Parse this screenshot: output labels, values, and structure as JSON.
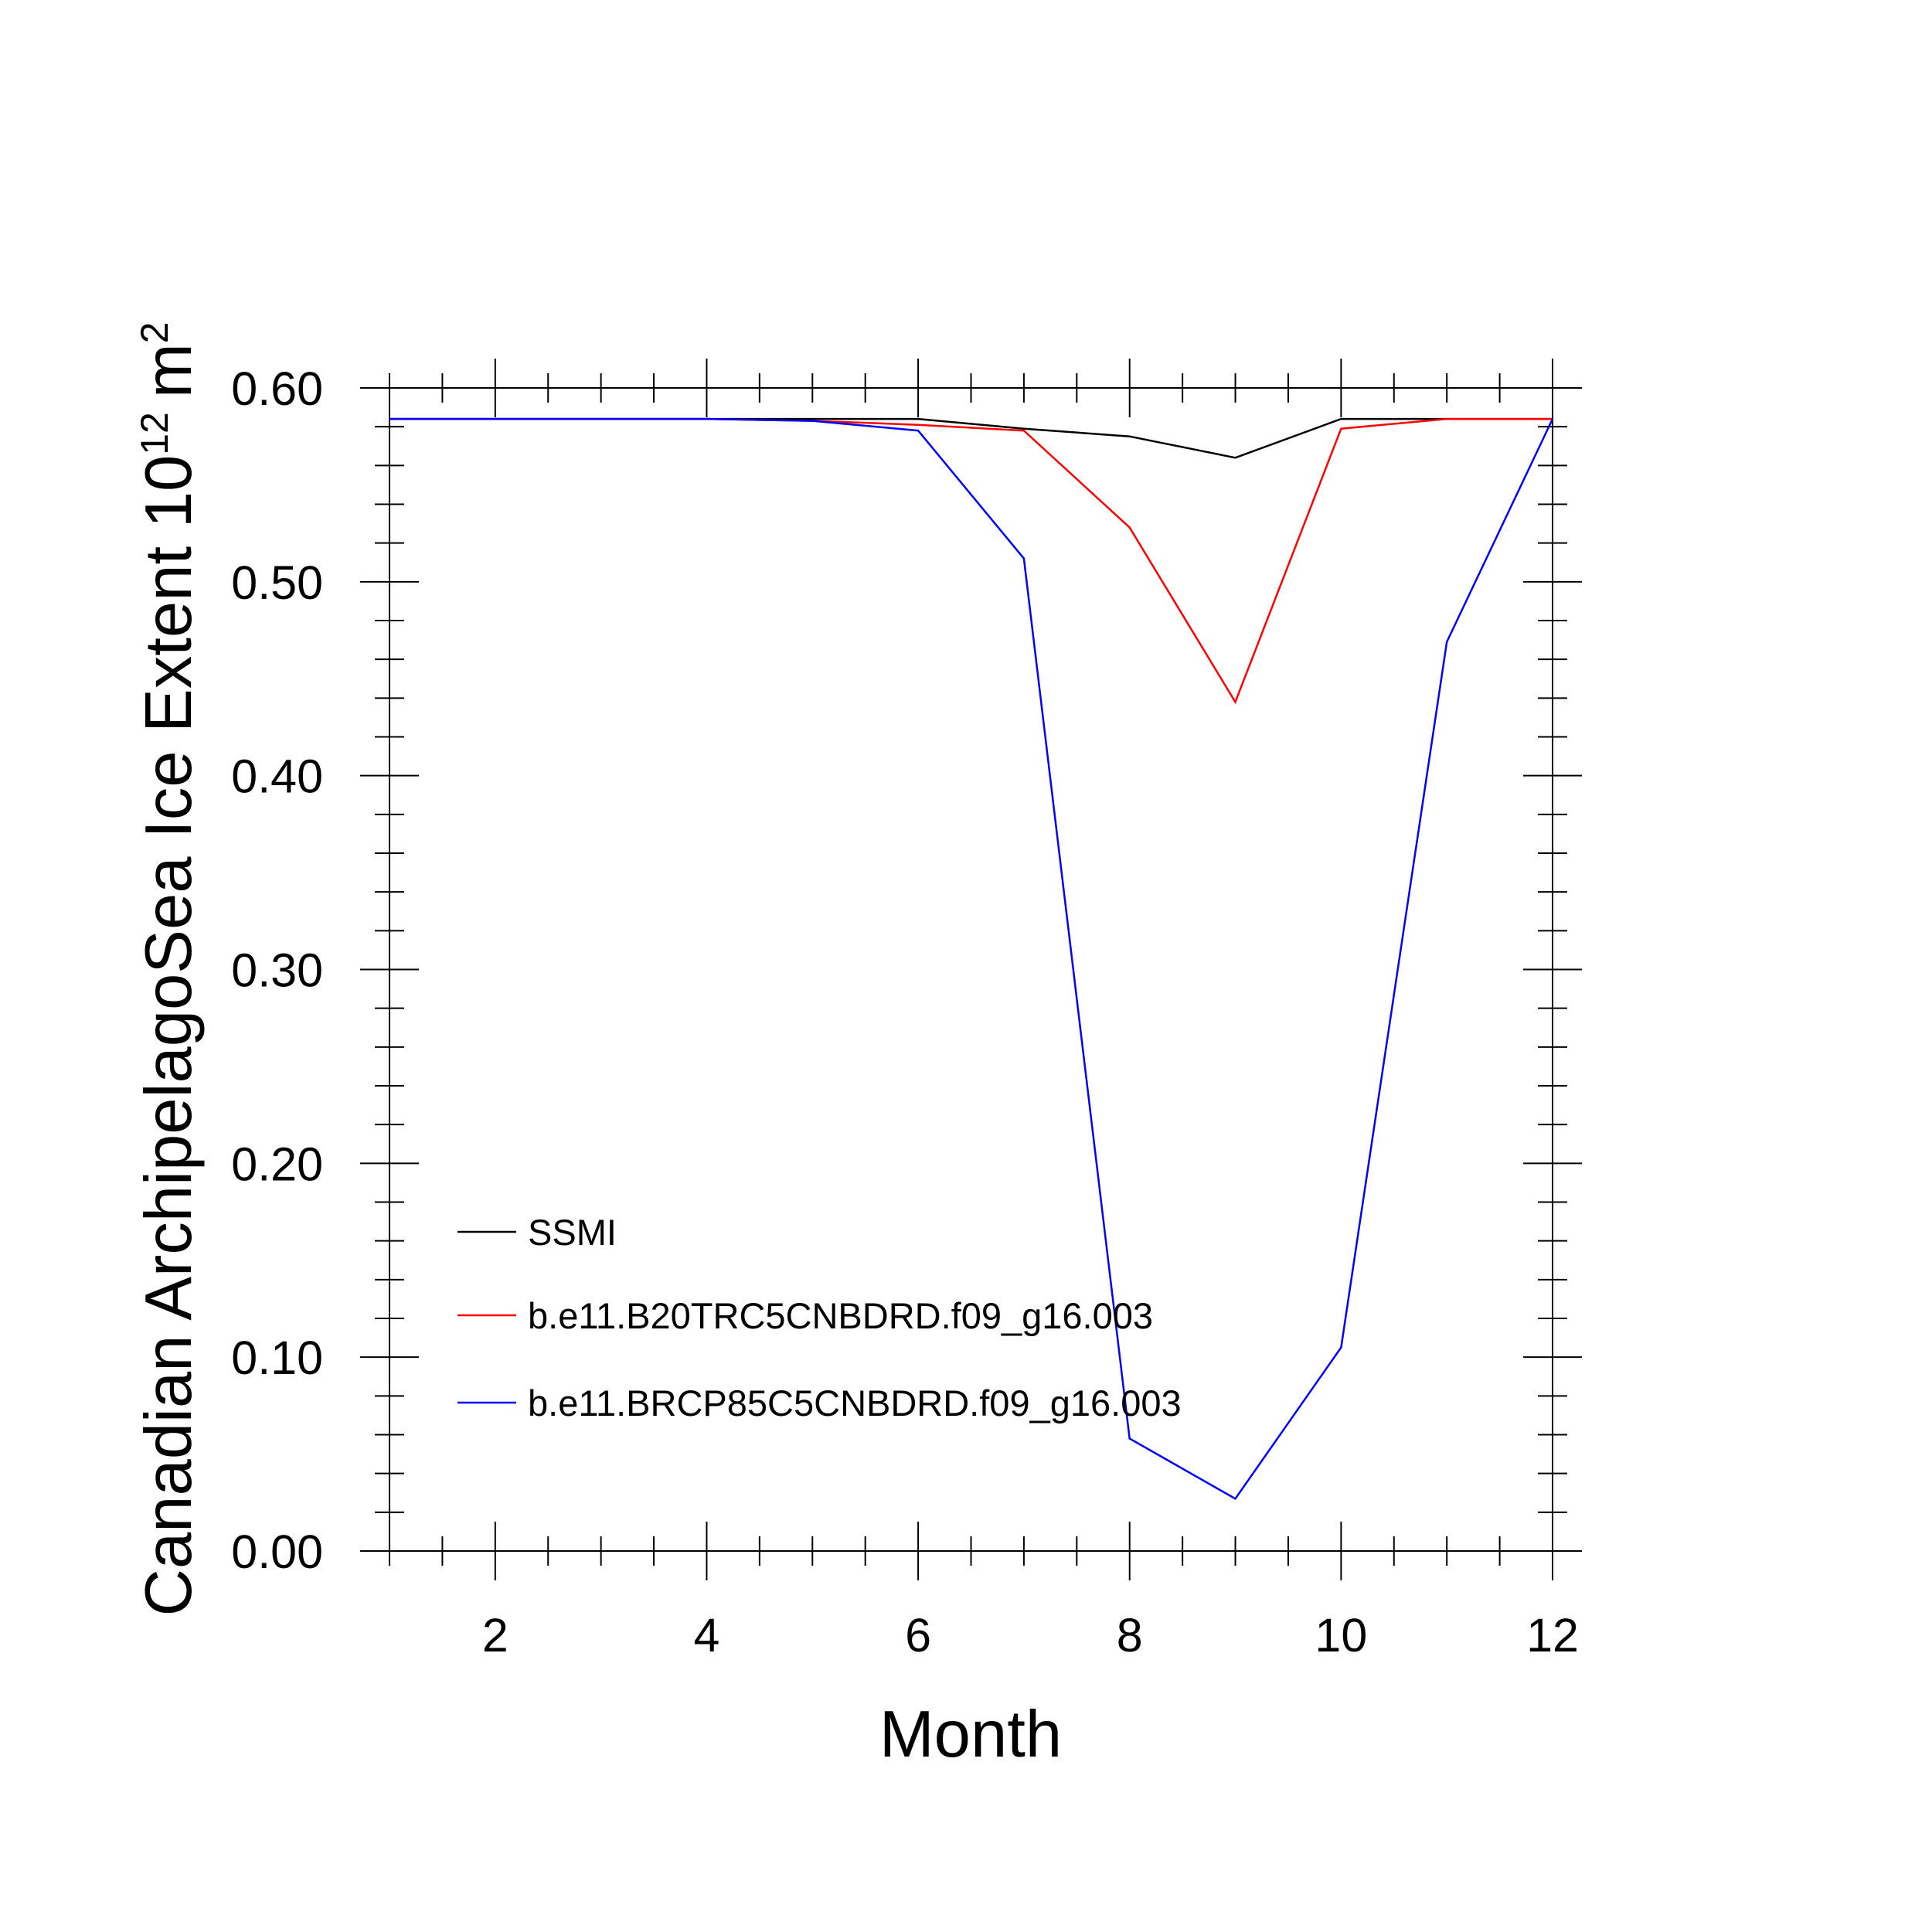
{
  "chart_data": {
    "type": "line",
    "title": "",
    "xlabel": "Month",
    "ylabel_main": "Canadian ArchipelagoSea Ice Extent 10",
    "ylabel_exponent": "12",
    "ylabel_unit": "m",
    "ylabel_unit_exponent": "2",
    "xlim": [
      1,
      12
    ],
    "ylim": [
      0,
      0.6
    ],
    "xticks": [
      2,
      4,
      6,
      8,
      10,
      12
    ],
    "xtick_labels": [
      "2",
      "4",
      "6",
      "8",
      "10",
      "12"
    ],
    "yticks": [
      0,
      0.1,
      0.2,
      0.3,
      0.4,
      0.5,
      0.6
    ],
    "ytick_labels": [
      "0.00",
      "0.10",
      "0.20",
      "0.30",
      "0.40",
      "0.50",
      "0.60"
    ],
    "grid": false,
    "legend_position": "lower-left",
    "x": [
      1,
      2,
      3,
      4,
      5,
      6,
      7,
      8,
      9,
      10,
      11,
      12
    ],
    "series": [
      {
        "name": "SSMI",
        "color": "#000000",
        "values": [
          0.584,
          0.584,
          0.584,
          0.584,
          0.584,
          0.584,
          0.579,
          0.575,
          0.564,
          0.584,
          0.584,
          0.584
        ]
      },
      {
        "name": "b.e11.B20TRC5CNBDRD.f09_g16.003",
        "color": "#ff0000",
        "values": [
          0.584,
          0.584,
          0.584,
          0.584,
          0.583,
          0.581,
          0.578,
          0.528,
          0.438,
          0.579,
          0.584,
          0.584
        ]
      },
      {
        "name": "b.e11.BRCP85C5CNBDRD.f09_g16.003",
        "color": "#0000ff",
        "values": [
          0.584,
          0.584,
          0.584,
          0.584,
          0.583,
          0.578,
          0.512,
          0.058,
          0.027,
          0.105,
          0.469,
          0.584
        ]
      }
    ]
  }
}
